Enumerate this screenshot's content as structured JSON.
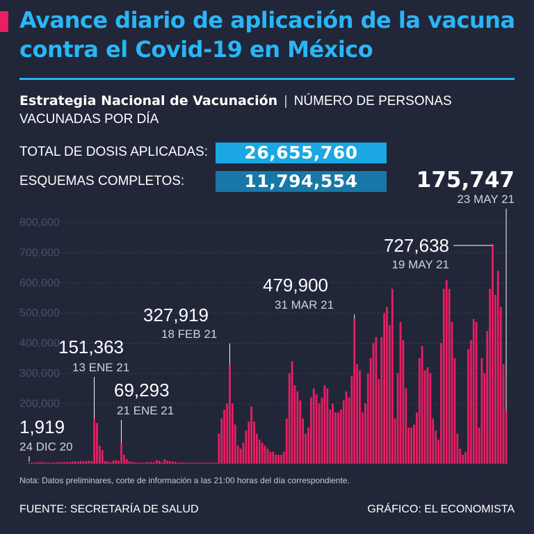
{
  "header": {
    "title": "Avance diario de aplicación de la vacuna contra el Covid-19 en México",
    "subtitle_strong": "Estrategia Nacional de Vacunación",
    "subtitle_separator": "|",
    "subtitle_rest": "NÚMERO DE PERSONAS VACUNADAS POR DÍA"
  },
  "stats": {
    "doses_label": "TOTAL DE DOSIS APLICADAS:",
    "doses_value": "26,655,760",
    "complete_label": "ESQUEMAS COMPLETOS:",
    "complete_value": "11,794,554"
  },
  "colors": {
    "background": "#212639",
    "accent": "#e91e63",
    "title": "#29b6f6",
    "doses_box": "#1aa7e4",
    "complete_box": "#1778a8",
    "grid": "#3e4459",
    "tick": "#4a5068"
  },
  "chart_data": {
    "type": "bar",
    "title": "",
    "xlabel": "",
    "ylabel": "",
    "ylim": [
      0,
      800000
    ],
    "yticks": [
      200000,
      300000,
      400000,
      500000,
      600000,
      700000,
      800000
    ],
    "ytick_labels": [
      "200,000",
      "300,000",
      "400,000",
      "500,000",
      "600,000",
      "700,000",
      "800,000"
    ],
    "grid": true,
    "x_start": "24 DIC 20",
    "x_end": "23 MAY 21",
    "values": [
      1919,
      4000,
      3000,
      5000,
      6000,
      5000,
      4000,
      3000,
      1000,
      5000,
      4000,
      5000,
      6000,
      5000,
      6000,
      6000,
      7000,
      8000,
      7000,
      9000,
      8000,
      9000,
      10000,
      9000,
      151363,
      135000,
      60000,
      45000,
      9000,
      8000,
      5000,
      10000,
      12000,
      10000,
      69293,
      30000,
      15000,
      8000,
      6000,
      5000,
      4000,
      4000,
      4000,
      5000,
      5000,
      6000,
      5000,
      12000,
      10000,
      5000,
      15000,
      10000,
      8000,
      7000,
      6000,
      3000,
      5000,
      4000,
      3000,
      0,
      0,
      0,
      0,
      0,
      0,
      0,
      0,
      0,
      0,
      0,
      100000,
      150000,
      180000,
      200000,
      327919,
      200000,
      130000,
      60000,
      50000,
      70000,
      110000,
      140000,
      190000,
      140000,
      100000,
      80000,
      70000,
      60000,
      50000,
      40000,
      40000,
      30000,
      30000,
      30000,
      40000,
      150000,
      300000,
      340000,
      260000,
      240000,
      210000,
      150000,
      100000,
      120000,
      220000,
      250000,
      230000,
      200000,
      220000,
      260000,
      250000,
      180000,
      200000,
      170000,
      170000,
      180000,
      210000,
      240000,
      220000,
      290000,
      479900,
      330000,
      310000,
      170000,
      200000,
      300000,
      350000,
      400000,
      420000,
      280000,
      420000,
      500000,
      520000,
      460000,
      580000,
      150000,
      300000,
      470000,
      410000,
      250000,
      120000,
      120000,
      130000,
      170000,
      350000,
      390000,
      310000,
      320000,
      300000,
      150000,
      110000,
      80000,
      400000,
      580000,
      610000,
      580000,
      470000,
      350000,
      100000,
      50000,
      30000,
      40000,
      380000,
      410000,
      480000,
      470000,
      120000,
      350000,
      300000,
      440000,
      580000,
      727638,
      560000,
      640000,
      520000,
      330000,
      175747
    ],
    "annotations": [
      {
        "value": "1,919",
        "date": "24 DIC 20"
      },
      {
        "value": "151,363",
        "date": "13 ENE 21"
      },
      {
        "value": "69,293",
        "date": "21 ENE 21"
      },
      {
        "value": "327,919",
        "date": "18 FEB 21"
      },
      {
        "value": "479,900",
        "date": "31 MAR 21"
      },
      {
        "value": "727,638",
        "date": "19 MAY 21"
      },
      {
        "value": "175,747",
        "date": "23 MAY 21"
      }
    ]
  },
  "footer": {
    "note": "Nota: Datos preliminares, corte de información a las 21:00 horas del día correspondiente.",
    "source": "FUENTE: SECRETARÍA DE SALUD",
    "credit": "GRÁFICO: EL ECONOMISTA"
  }
}
